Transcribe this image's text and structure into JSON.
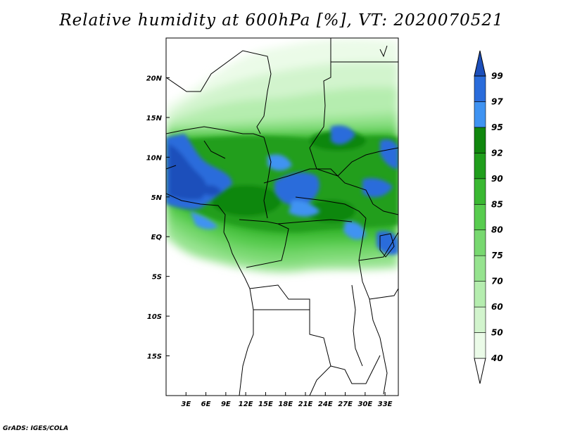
{
  "title": "Relative humidity at 600hPa [%], VT: 2020070521",
  "footer": "GrADS: IGES/COLA",
  "chart_data": {
    "type": "heatmap",
    "variable": "Relative humidity",
    "level": "600hPa",
    "units": "%",
    "valid_time": "2020070521",
    "lon_range": [
      0,
      35
    ],
    "lat_range": [
      -20,
      25
    ],
    "x_ticks": [
      "3E",
      "6E",
      "9E",
      "12E",
      "15E",
      "18E",
      "21E",
      "24E",
      "27E",
      "30E",
      "33E"
    ],
    "y_ticks": [
      "20N",
      "15N",
      "10N",
      "5N",
      "EQ",
      "5S",
      "10S",
      "15S"
    ],
    "colorbar": {
      "levels": [
        "40",
        "50",
        "60",
        "70",
        "75",
        "80",
        "85",
        "90",
        "92",
        "95",
        "97",
        "99"
      ],
      "colors": [
        "#ebfbe8",
        "#d2f4cd",
        "#b5edaf",
        "#96e38f",
        "#78d870",
        "#58cc4f",
        "#3ab832",
        "#209e1c",
        "#10870e",
        "#3f93f2",
        "#2a6cdb",
        "#1c4fbb"
      ]
    }
  }
}
